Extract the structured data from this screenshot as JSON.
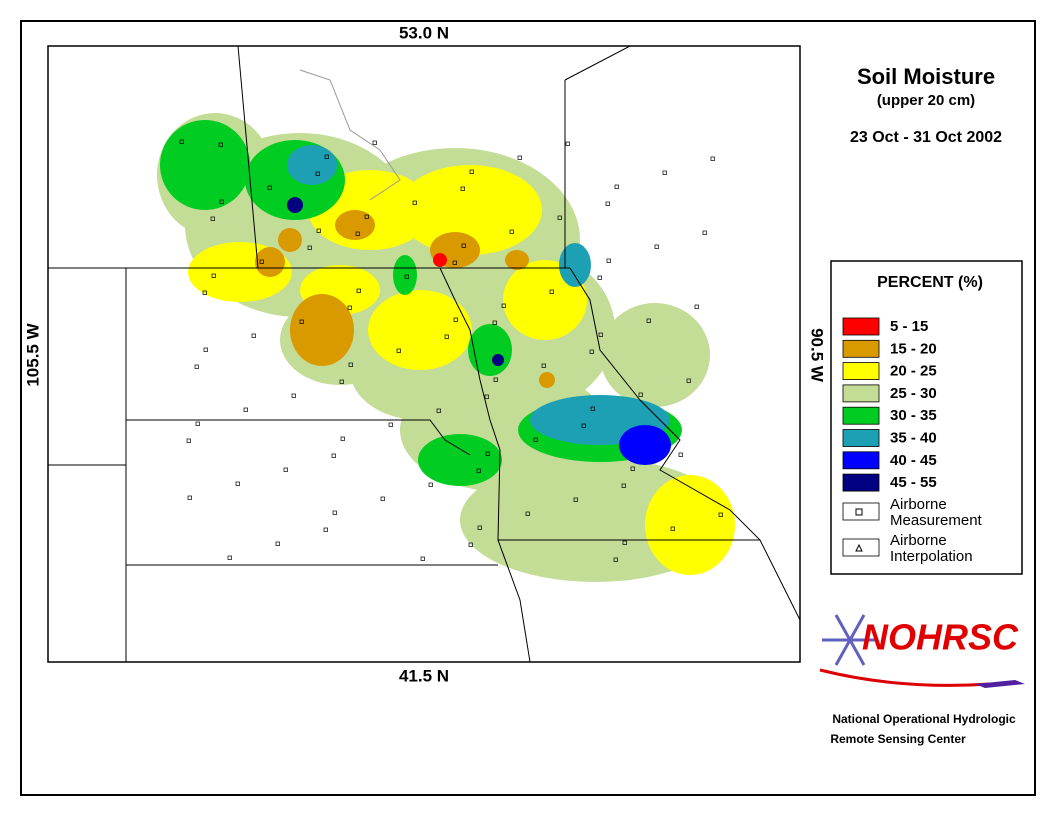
{
  "title": "Soil Moisture",
  "subtitle": "(upper 20 cm)",
  "date_range": "23 Oct - 31 Oct 2002",
  "map": {
    "north_label": "53.0 N",
    "south_label": "41.5 N",
    "west_label": "105.5 W",
    "east_label": "90.5 W"
  },
  "legend": {
    "title": "PERCENT (%)",
    "items": [
      {
        "label": "5 - 15",
        "color": "#ff0000"
      },
      {
        "label": "15 - 20",
        "color": "#d99a00"
      },
      {
        "label": "20 - 25",
        "color": "#ffff00"
      },
      {
        "label": "25 - 30",
        "color": "#c3dc96"
      },
      {
        "label": "30 - 35",
        "color": "#00cc22"
      },
      {
        "label": "35 - 40",
        "color": "#1ea0b4"
      },
      {
        "label": "40 - 45",
        "color": "#0000ff"
      },
      {
        "label": "45 - 55",
        "color": "#000080"
      }
    ],
    "symbols": [
      {
        "lines": [
          "Airborne",
          "Measurement"
        ]
      },
      {
        "lines": [
          "Airborne",
          "Interpolation"
        ]
      }
    ]
  },
  "logo": {
    "text": "NOHRSC",
    "org_lines": [
      "National Operational Hydrologic",
      "Remote Sensing Center"
    ]
  }
}
